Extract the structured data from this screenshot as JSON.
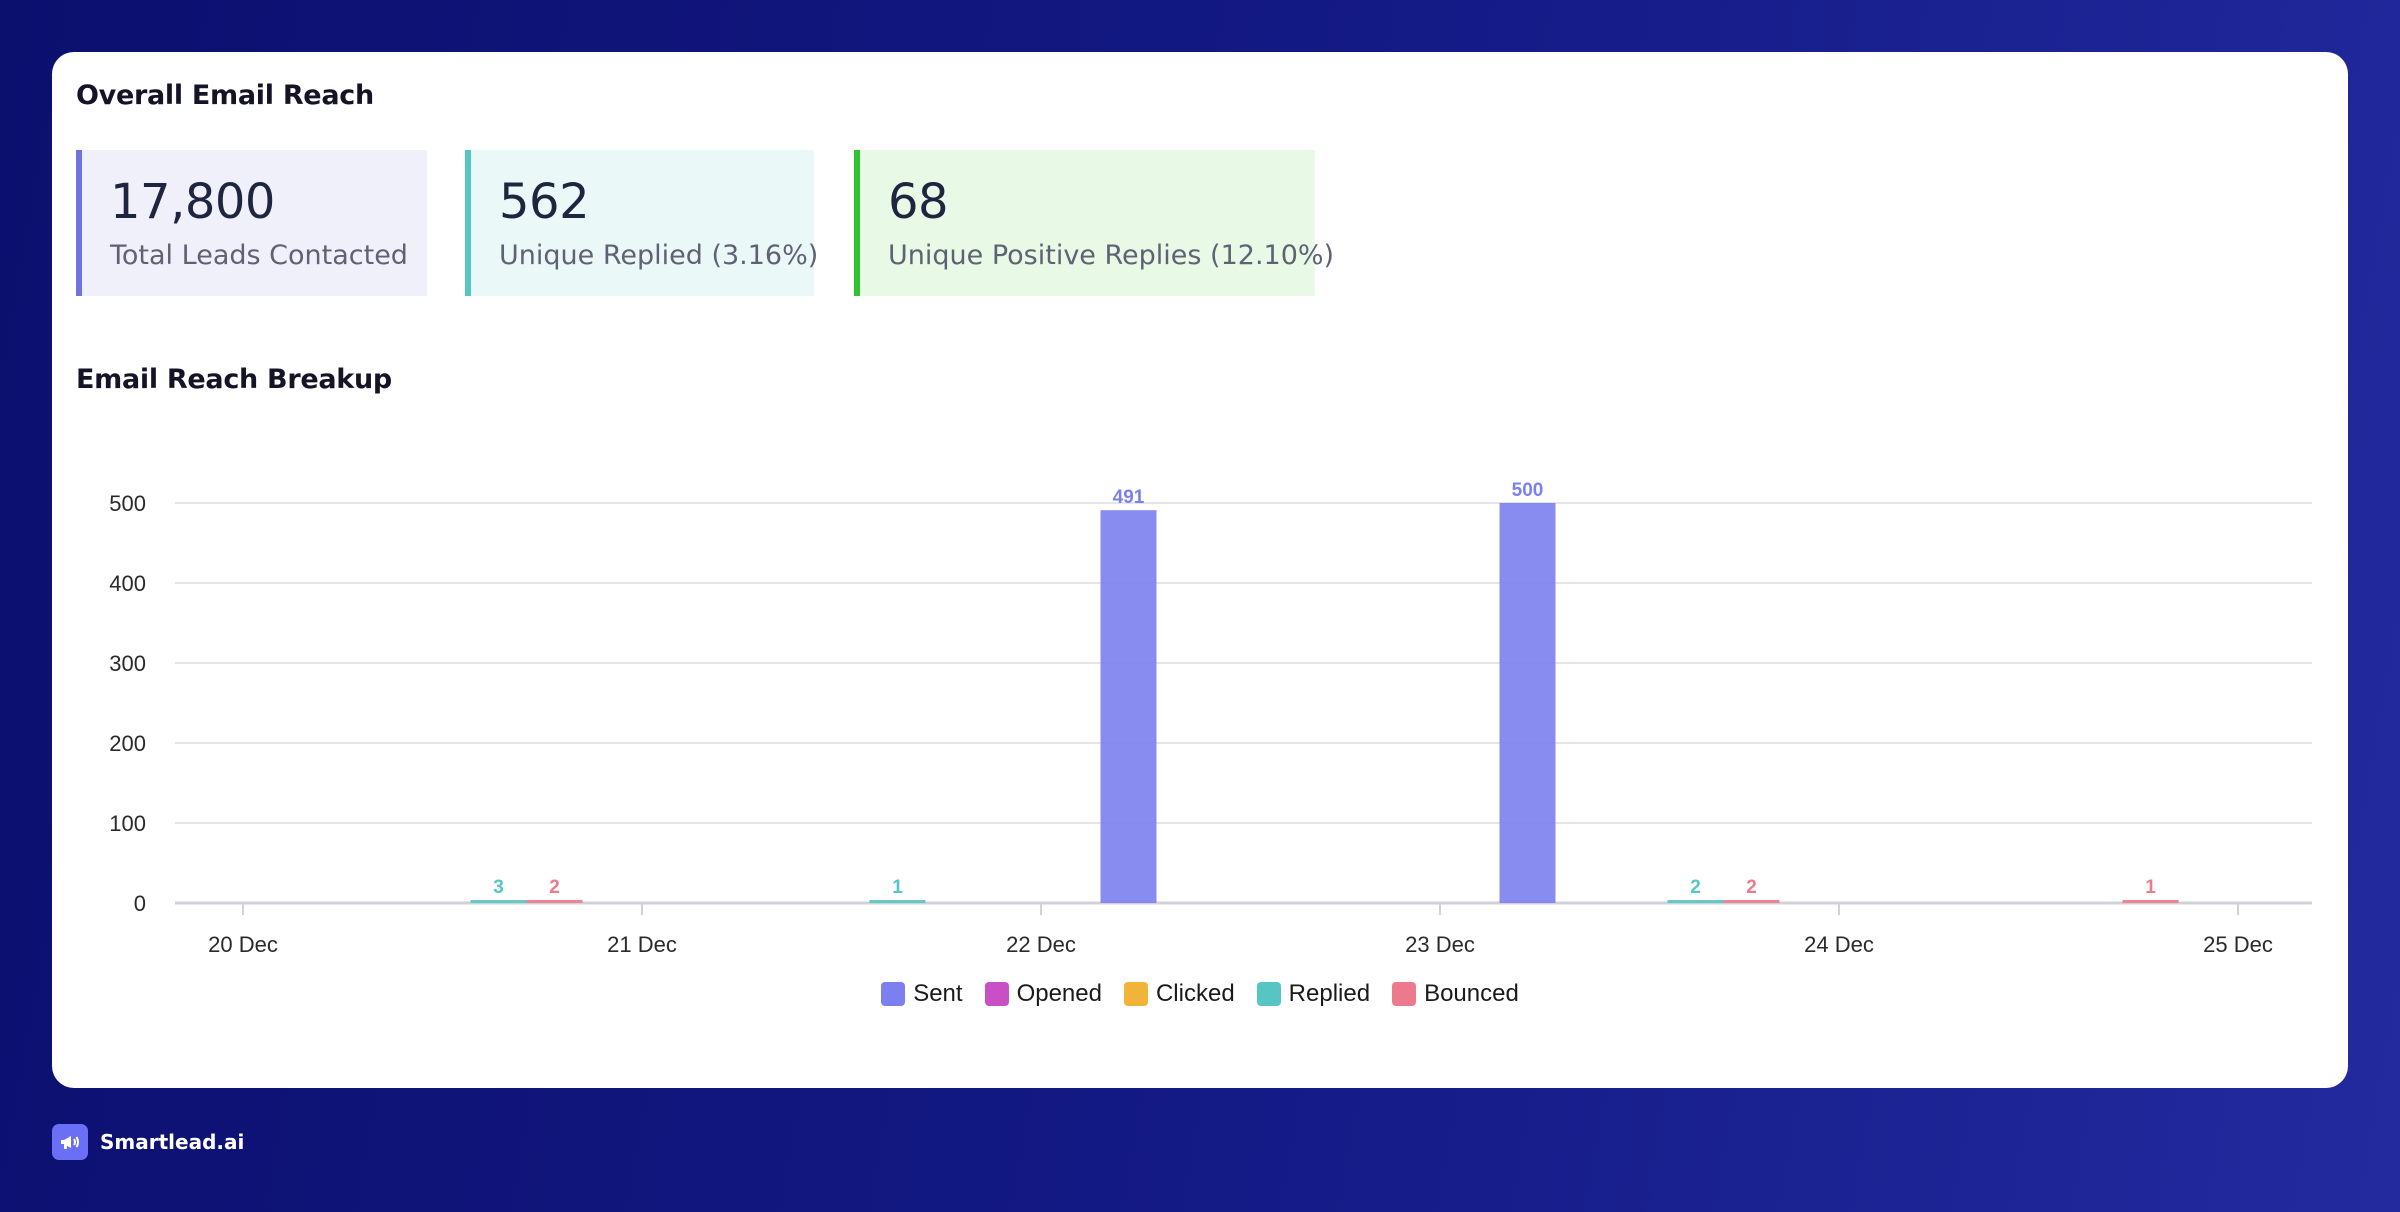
{
  "overall": {
    "title": "Overall Email Reach",
    "stats": [
      {
        "value": "17,800",
        "label": "Total Leads Contacted",
        "accent": "#7072e0",
        "bg": "#f0f0fb"
      },
      {
        "value": "562",
        "label": "Unique Replied (3.16%)",
        "accent": "#57c5c3",
        "bg": "#ebf8f8"
      },
      {
        "value": "68",
        "label": "Unique Positive Replies (12.10%)",
        "accent": "#2fc42f",
        "bg": "#e8f9e6"
      }
    ]
  },
  "breakup": {
    "title": "Email Reach Breakup"
  },
  "chart_data": {
    "type": "bar",
    "title": "Email Reach Breakup",
    "xlabel": "",
    "ylabel": "",
    "ylim": [
      0,
      500
    ],
    "yticks": [
      0,
      100,
      200,
      300,
      400,
      500
    ],
    "categories": [
      "20 Dec",
      "21 Dec",
      "22 Dec",
      "23 Dec",
      "24 Dec",
      "25 Dec"
    ],
    "series": [
      {
        "name": "Sent",
        "color": "#7b7ff0",
        "values": [
          0,
          0,
          491,
          500,
          0,
          0
        ]
      },
      {
        "name": "Opened",
        "color": "#c94fc6",
        "values": [
          0,
          0,
          0,
          0,
          0,
          0
        ]
      },
      {
        "name": "Clicked",
        "color": "#f0b43a",
        "values": [
          0,
          0,
          0,
          0,
          0,
          0
        ]
      },
      {
        "name": "Replied",
        "color": "#57c5c3",
        "values": [
          3,
          1,
          0,
          2,
          0,
          0
        ]
      },
      {
        "name": "Bounced",
        "color": "#ec7a8c",
        "values": [
          2,
          0,
          0,
          2,
          1,
          0
        ]
      }
    ],
    "legend": "bottom-center",
    "grid": true
  },
  "brand": {
    "name": "Smartlead.ai",
    "icon": "megaphone-icon"
  }
}
